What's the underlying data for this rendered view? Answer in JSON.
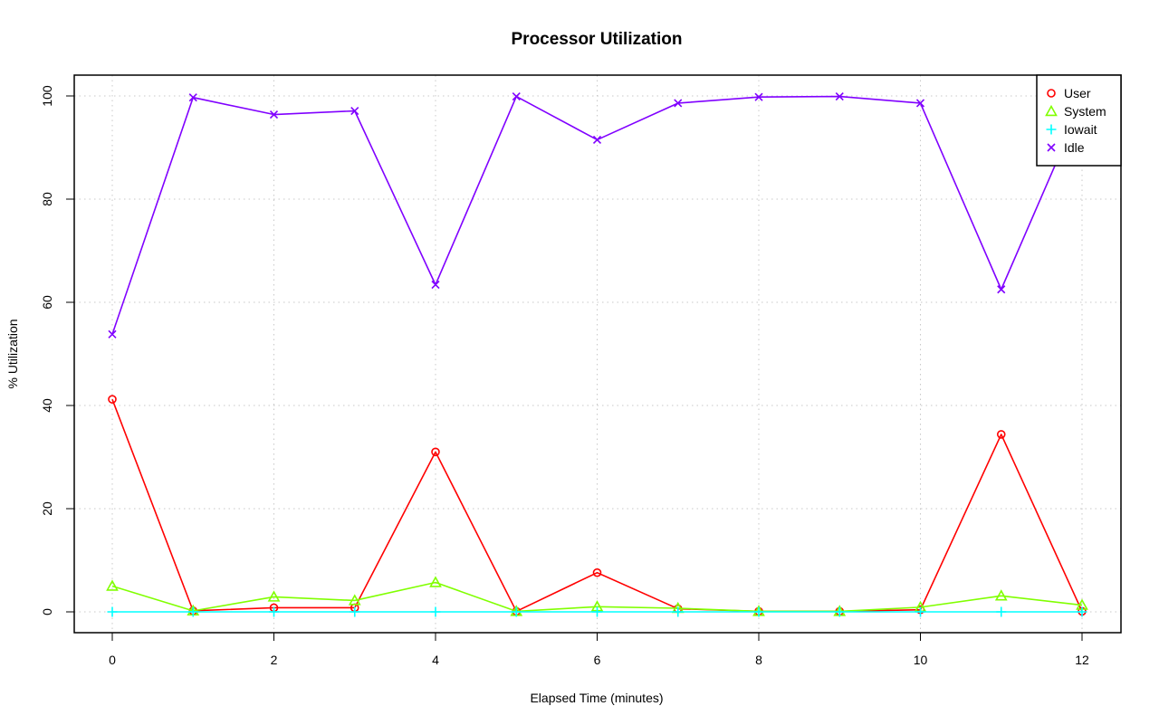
{
  "chart_data": {
    "type": "line",
    "title": "Processor Utilization",
    "xlabel": "Elapsed Time (minutes)",
    "ylabel": "% Utilization",
    "xlim": [
      0,
      12
    ],
    "ylim": [
      0,
      100
    ],
    "x_ticks": [
      "0",
      "2",
      "4",
      "6",
      "8",
      "10",
      "12"
    ],
    "y_ticks": [
      "0",
      "20",
      "40",
      "60",
      "80",
      "100"
    ],
    "grid": true,
    "legend_position": "top-right",
    "x": [
      0,
      1,
      2,
      3,
      4,
      5,
      6,
      7,
      8,
      9,
      10,
      11,
      12
    ],
    "series": [
      {
        "name": "User",
        "color": "#ff0000",
        "marker": "circle",
        "values": [
          41.2,
          0.2,
          0.8,
          0.8,
          31.0,
          0.1,
          7.6,
          0.6,
          0.1,
          0.1,
          0.4,
          34.4,
          0.1
        ]
      },
      {
        "name": "System",
        "color": "#80ff00",
        "marker": "triangle",
        "values": [
          5.0,
          0.2,
          2.9,
          2.2,
          5.7,
          0.1,
          1.0,
          0.7,
          0.1,
          0.1,
          0.9,
          3.1,
          1.3
        ]
      },
      {
        "name": "Iowait",
        "color": "#00ffff",
        "marker": "plus",
        "values": [
          0,
          0,
          0,
          0,
          0,
          0,
          0,
          0,
          0,
          0,
          0,
          0,
          0
        ]
      },
      {
        "name": "Idle",
        "color": "#8000ff",
        "marker": "cross",
        "values": [
          53.8,
          99.7,
          96.4,
          97.1,
          63.4,
          99.9,
          91.5,
          98.6,
          99.8,
          99.9,
          98.6,
          62.5,
          98.6
        ]
      }
    ]
  }
}
